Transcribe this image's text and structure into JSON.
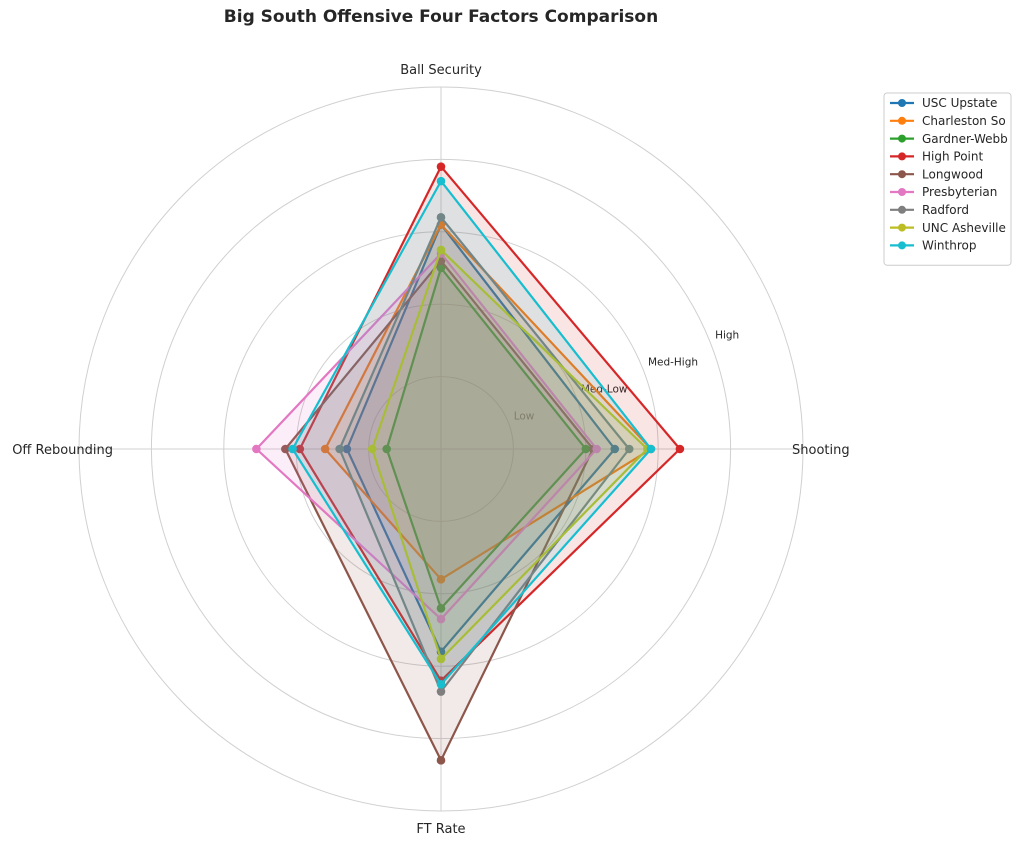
{
  "chart_data": {
    "type": "radar",
    "title": "Big South Offensive Four Factors Comparison",
    "axes": [
      "Shooting",
      "Ball Security",
      "Off Rebounding",
      "FT Rate"
    ],
    "ring_labels": [
      "Low",
      "Med-Low",
      "Med-High",
      "High"
    ],
    "rlim": [
      0,
      5
    ],
    "grid": true,
    "legend_position": "top-right",
    "series": [
      {
        "name": "USC Upstate",
        "color": "#1f77b4",
        "values": [
          2.4,
          3.1,
          1.3,
          2.8
        ]
      },
      {
        "name": "Charleston So",
        "color": "#ff7f0e",
        "values": [
          2.9,
          3.1,
          1.6,
          1.8
        ]
      },
      {
        "name": "Gardner-Webb",
        "color": "#2ca02c",
        "values": [
          2.0,
          2.5,
          0.75,
          2.2
        ]
      },
      {
        "name": "High Point",
        "color": "#d62728",
        "values": [
          3.3,
          3.9,
          1.95,
          3.2
        ]
      },
      {
        "name": "Longwood",
        "color": "#8c564b",
        "values": [
          2.1,
          2.6,
          2.15,
          4.3
        ]
      },
      {
        "name": "Presbyterian",
        "color": "#e377c2",
        "values": [
          2.15,
          2.7,
          2.55,
          2.35
        ]
      },
      {
        "name": "Radford",
        "color": "#7f7f7f",
        "values": [
          2.6,
          3.2,
          1.4,
          3.35
        ]
      },
      {
        "name": "UNC Asheville",
        "color": "#bcbd22",
        "values": [
          2.85,
          2.75,
          0.95,
          2.9
        ]
      },
      {
        "name": "Winthrop",
        "color": "#17becf",
        "values": [
          2.9,
          3.7,
          2.05,
          3.25
        ]
      }
    ]
  }
}
